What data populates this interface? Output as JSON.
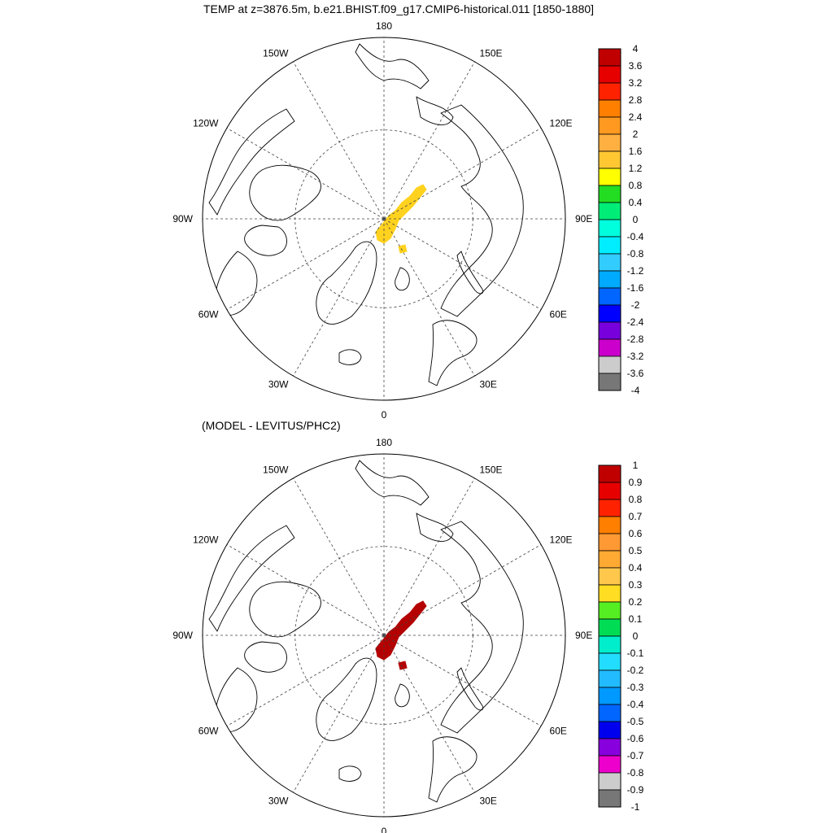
{
  "maps": [
    {
      "title": "TEMP at z=3876.5m, b.e21.BHIST.f09_g17.CMIP6-historical.011 [1850-1880]",
      "lon_labels": [
        "180",
        "150E",
        "120E",
        "90E",
        "60E",
        "30E",
        "0",
        "30W",
        "60W",
        "90W",
        "120W",
        "150W"
      ],
      "colorbar": {
        "levels": [
          "4",
          "3.6",
          "3.2",
          "2.8",
          "2.4",
          "2",
          "1.6",
          "1.2",
          "0.8",
          "0.4",
          "0",
          "-0.4",
          "-0.8",
          "-1.2",
          "-1.6",
          "-2",
          "-2.4",
          "-2.8",
          "-3.2",
          "-3.6",
          "-4"
        ],
        "colors": [
          "#c00000",
          "#e60000",
          "#ff2200",
          "#ff7f00",
          "#ff9920",
          "#ffb040",
          "#ffc833",
          "#ffff00",
          "#22dd22",
          "#00ee77",
          "#00ffdd",
          "#00eeff",
          "#33ccff",
          "#00aaff",
          "#0066ff",
          "#0000ff",
          "#7700dd",
          "#cc00cc",
          "#cccccc",
          "#777777"
        ]
      },
      "anomaly_color": "#ffd21f"
    },
    {
      "title": "(MODEL - LEVITUS/PHC2)",
      "lon_labels": [
        "180",
        "150E",
        "120E",
        "90E",
        "60E",
        "30E",
        "0",
        "30W",
        "60W",
        "90W",
        "120W",
        "150W"
      ],
      "colorbar": {
        "levels": [
          "1",
          "0.9",
          "0.8",
          "0.7",
          "0.6",
          "0.5",
          "0.4",
          "0.3",
          "0.2",
          "0.1",
          "0",
          "-0.1",
          "-0.2",
          "-0.3",
          "-0.4",
          "-0.5",
          "-0.6",
          "-0.7",
          "-0.8",
          "-0.9",
          "-1"
        ],
        "colors": [
          "#c00000",
          "#e60000",
          "#ff2200",
          "#ff7f00",
          "#ff9933",
          "#ffaa33",
          "#ffc84d",
          "#ffdd22",
          "#55ee22",
          "#00dd55",
          "#00eecc",
          "#22ddff",
          "#22bbff",
          "#0099ff",
          "#0066ff",
          "#0000ee",
          "#8800dd",
          "#ee00cc",
          "#cccccc",
          "#777777"
        ]
      },
      "anomaly_color": "#b40000"
    }
  ]
}
